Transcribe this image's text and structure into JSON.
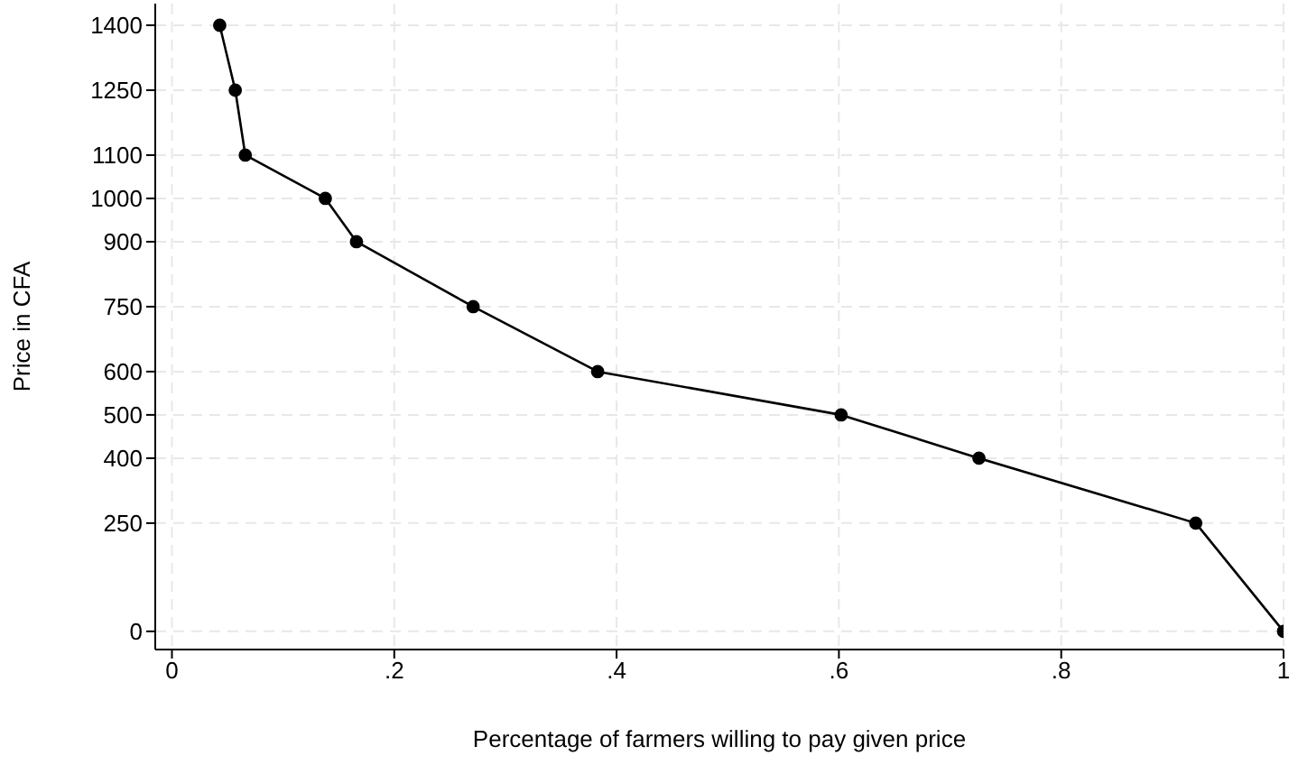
{
  "chart_data": {
    "type": "line",
    "xlabel": "Percentage of farmers willing to pay given price",
    "ylabel": "Price in CFA",
    "x": [
      0.043,
      0.057,
      0.066,
      0.138,
      0.166,
      0.271,
      0.383,
      0.602,
      0.726,
      0.921,
      1
    ],
    "series": [
      {
        "color": "#000000",
        "values": [
          1400,
          1250,
          1100,
          1000,
          900,
          750,
          600,
          500,
          400,
          250,
          0
        ]
      }
    ],
    "xlim": [
      -0.015,
      1
    ],
    "xticks": [
      0,
      {
        "value": 0.2,
        "label": ".2"
      },
      {
        "value": 0.4,
        "label": ".4"
      },
      {
        "value": 0.6,
        "label": ".6"
      },
      {
        "value": 0.8,
        "label": ".8"
      },
      1
    ],
    "ylim": [
      -42,
      1450
    ],
    "yticks": [
      0,
      250,
      400,
      500,
      600,
      750,
      900,
      1000,
      1100,
      1250,
      1400
    ],
    "grid": true,
    "marker": "circle",
    "line_style": "solid"
  }
}
